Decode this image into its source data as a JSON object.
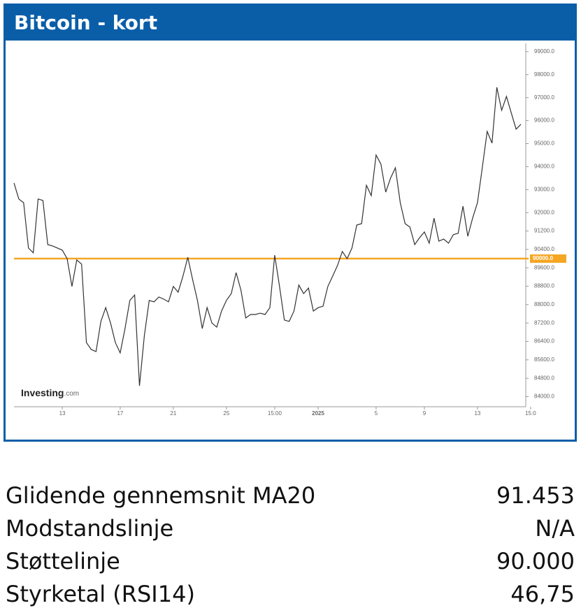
{
  "chart_data": {
    "type": "line",
    "title": "Bitcoin - kort",
    "watermark": "Investing",
    "watermark_suffix": ".com",
    "series": [
      {
        "color": "#333333",
        "values": [
          93290,
          92590,
          92430,
          90460,
          90250,
          92590,
          92530,
          90610,
          90550,
          90460,
          90370,
          90000,
          88790,
          89940,
          89760,
          86350,
          86050,
          85960,
          87270,
          87870,
          87200,
          86350,
          85900,
          86960,
          88180,
          88420,
          84470,
          86660,
          88180,
          88120,
          88330,
          88240,
          88120,
          88790,
          88540,
          89240,
          90060,
          89090,
          88180,
          86960,
          87870,
          87200,
          87020,
          87720,
          88180,
          88480,
          89390,
          88630,
          87420,
          87570,
          87570,
          87630,
          87570,
          87870,
          90150,
          88790,
          87330,
          87270,
          87720,
          88850,
          88480,
          88720,
          87720,
          87870,
          87930,
          88790,
          89240,
          89700,
          90310,
          90000,
          90460,
          91460,
          91520,
          93190,
          92740,
          94500,
          94110,
          92890,
          93500,
          93950,
          92430,
          91520,
          91370,
          90610,
          90910,
          91160,
          90670,
          91760,
          90760,
          90850,
          90670,
          91040,
          91100,
          92280,
          90970,
          91760,
          92430,
          93950,
          95530,
          95020,
          97450,
          96450,
          97050,
          96330,
          95630,
          95840
        ]
      }
    ],
    "hline": {
      "value": 90000,
      "label": "90000.0",
      "color": "#f5a623"
    },
    "xlim": [
      0,
      106
    ],
    "xticks": [
      {
        "value": 10,
        "label": "13"
      },
      {
        "value": 22,
        "label": "17"
      },
      {
        "value": 33,
        "label": "21"
      },
      {
        "value": 44,
        "label": "25"
      },
      {
        "value": 54,
        "label": "15:00"
      },
      {
        "value": 63,
        "label": "2025"
      },
      {
        "value": 75,
        "label": "5"
      },
      {
        "value": 85,
        "label": "9"
      },
      {
        "value": 96,
        "label": "13"
      },
      {
        "value": 107,
        "label": "15:0"
      }
    ],
    "ylim": [
      83560,
      99360
    ],
    "yticks": [
      {
        "value": 99000,
        "label": "99000.0"
      },
      {
        "value": 98000,
        "label": "98000.0"
      },
      {
        "value": 97000,
        "label": "97000.0"
      },
      {
        "value": 96000,
        "label": "96000.0"
      },
      {
        "value": 95000,
        "label": "95000.0"
      },
      {
        "value": 94000,
        "label": "94000.0"
      },
      {
        "value": 93000,
        "label": "93000.0"
      },
      {
        "value": 92000,
        "label": "92000.0"
      },
      {
        "value": 91200,
        "label": "91200.0"
      },
      {
        "value": 90400,
        "label": "90400.0"
      },
      {
        "value": 89600,
        "label": "89600.0"
      },
      {
        "value": 88800,
        "label": "88800.0"
      },
      {
        "value": 88000,
        "label": "88000.0"
      },
      {
        "value": 87200,
        "label": "87200.0"
      },
      {
        "value": 86400,
        "label": "86400.0"
      },
      {
        "value": 85600,
        "label": "85600.0"
      },
      {
        "value": 84800,
        "label": "84800.0"
      },
      {
        "value": 84000,
        "label": "84000.0"
      }
    ]
  },
  "table": {
    "rows": [
      [
        "Glidende gennemsnit MA20",
        "91.453"
      ],
      [
        "Modstandslinje",
        "N/A"
      ],
      [
        "Støttelinje",
        "90.000"
      ],
      [
        "Styrketal (RSI14)",
        "46,75"
      ]
    ]
  }
}
